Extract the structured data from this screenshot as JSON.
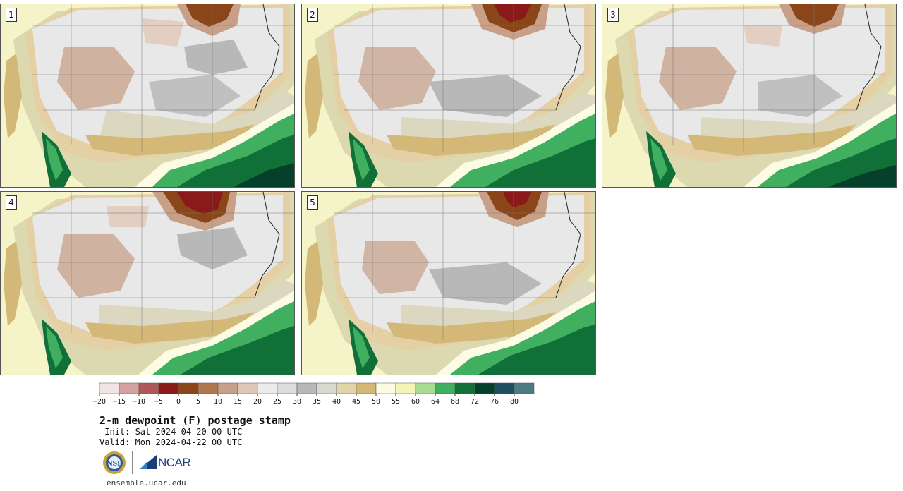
{
  "title": "2-m dewpoint (F) postage stamp",
  "init": " Init: Sat 2024-04-20 00 UTC",
  "valid": "Valid: Mon 2024-04-22 00 UTC",
  "website": "ensemble.ucar.edu",
  "logos": {
    "nsf": "NSF",
    "ncar": "NCAR"
  },
  "panels": [
    {
      "label": "1"
    },
    {
      "label": "2"
    },
    {
      "label": "3"
    },
    {
      "label": "4"
    },
    {
      "label": "5"
    }
  ],
  "colorbar": {
    "tick_labels": [
      "−20",
      "−15",
      "−10",
      "−5",
      "0",
      "5",
      "10",
      "15",
      "20",
      "25",
      "30",
      "35",
      "40",
      "45",
      "50",
      "55",
      "60",
      "64",
      "68",
      "72",
      "76",
      "80"
    ],
    "colors": [
      "#f2e4e4",
      "#d4a0a0",
      "#b05858",
      "#8a1a1a",
      "#8a4618",
      "#b07850",
      "#c8a088",
      "#e0c8b8",
      "#ececec",
      "#dcdcdc",
      "#b8b8b8",
      "#d8d8cc",
      "#e0d4a8",
      "#d4b878",
      "#fcfce4",
      "#f4f4b4",
      "#a8dc90",
      "#40b060",
      "#107038",
      "#04402a",
      "#1e5060",
      "#4c7c80"
    ]
  }
}
